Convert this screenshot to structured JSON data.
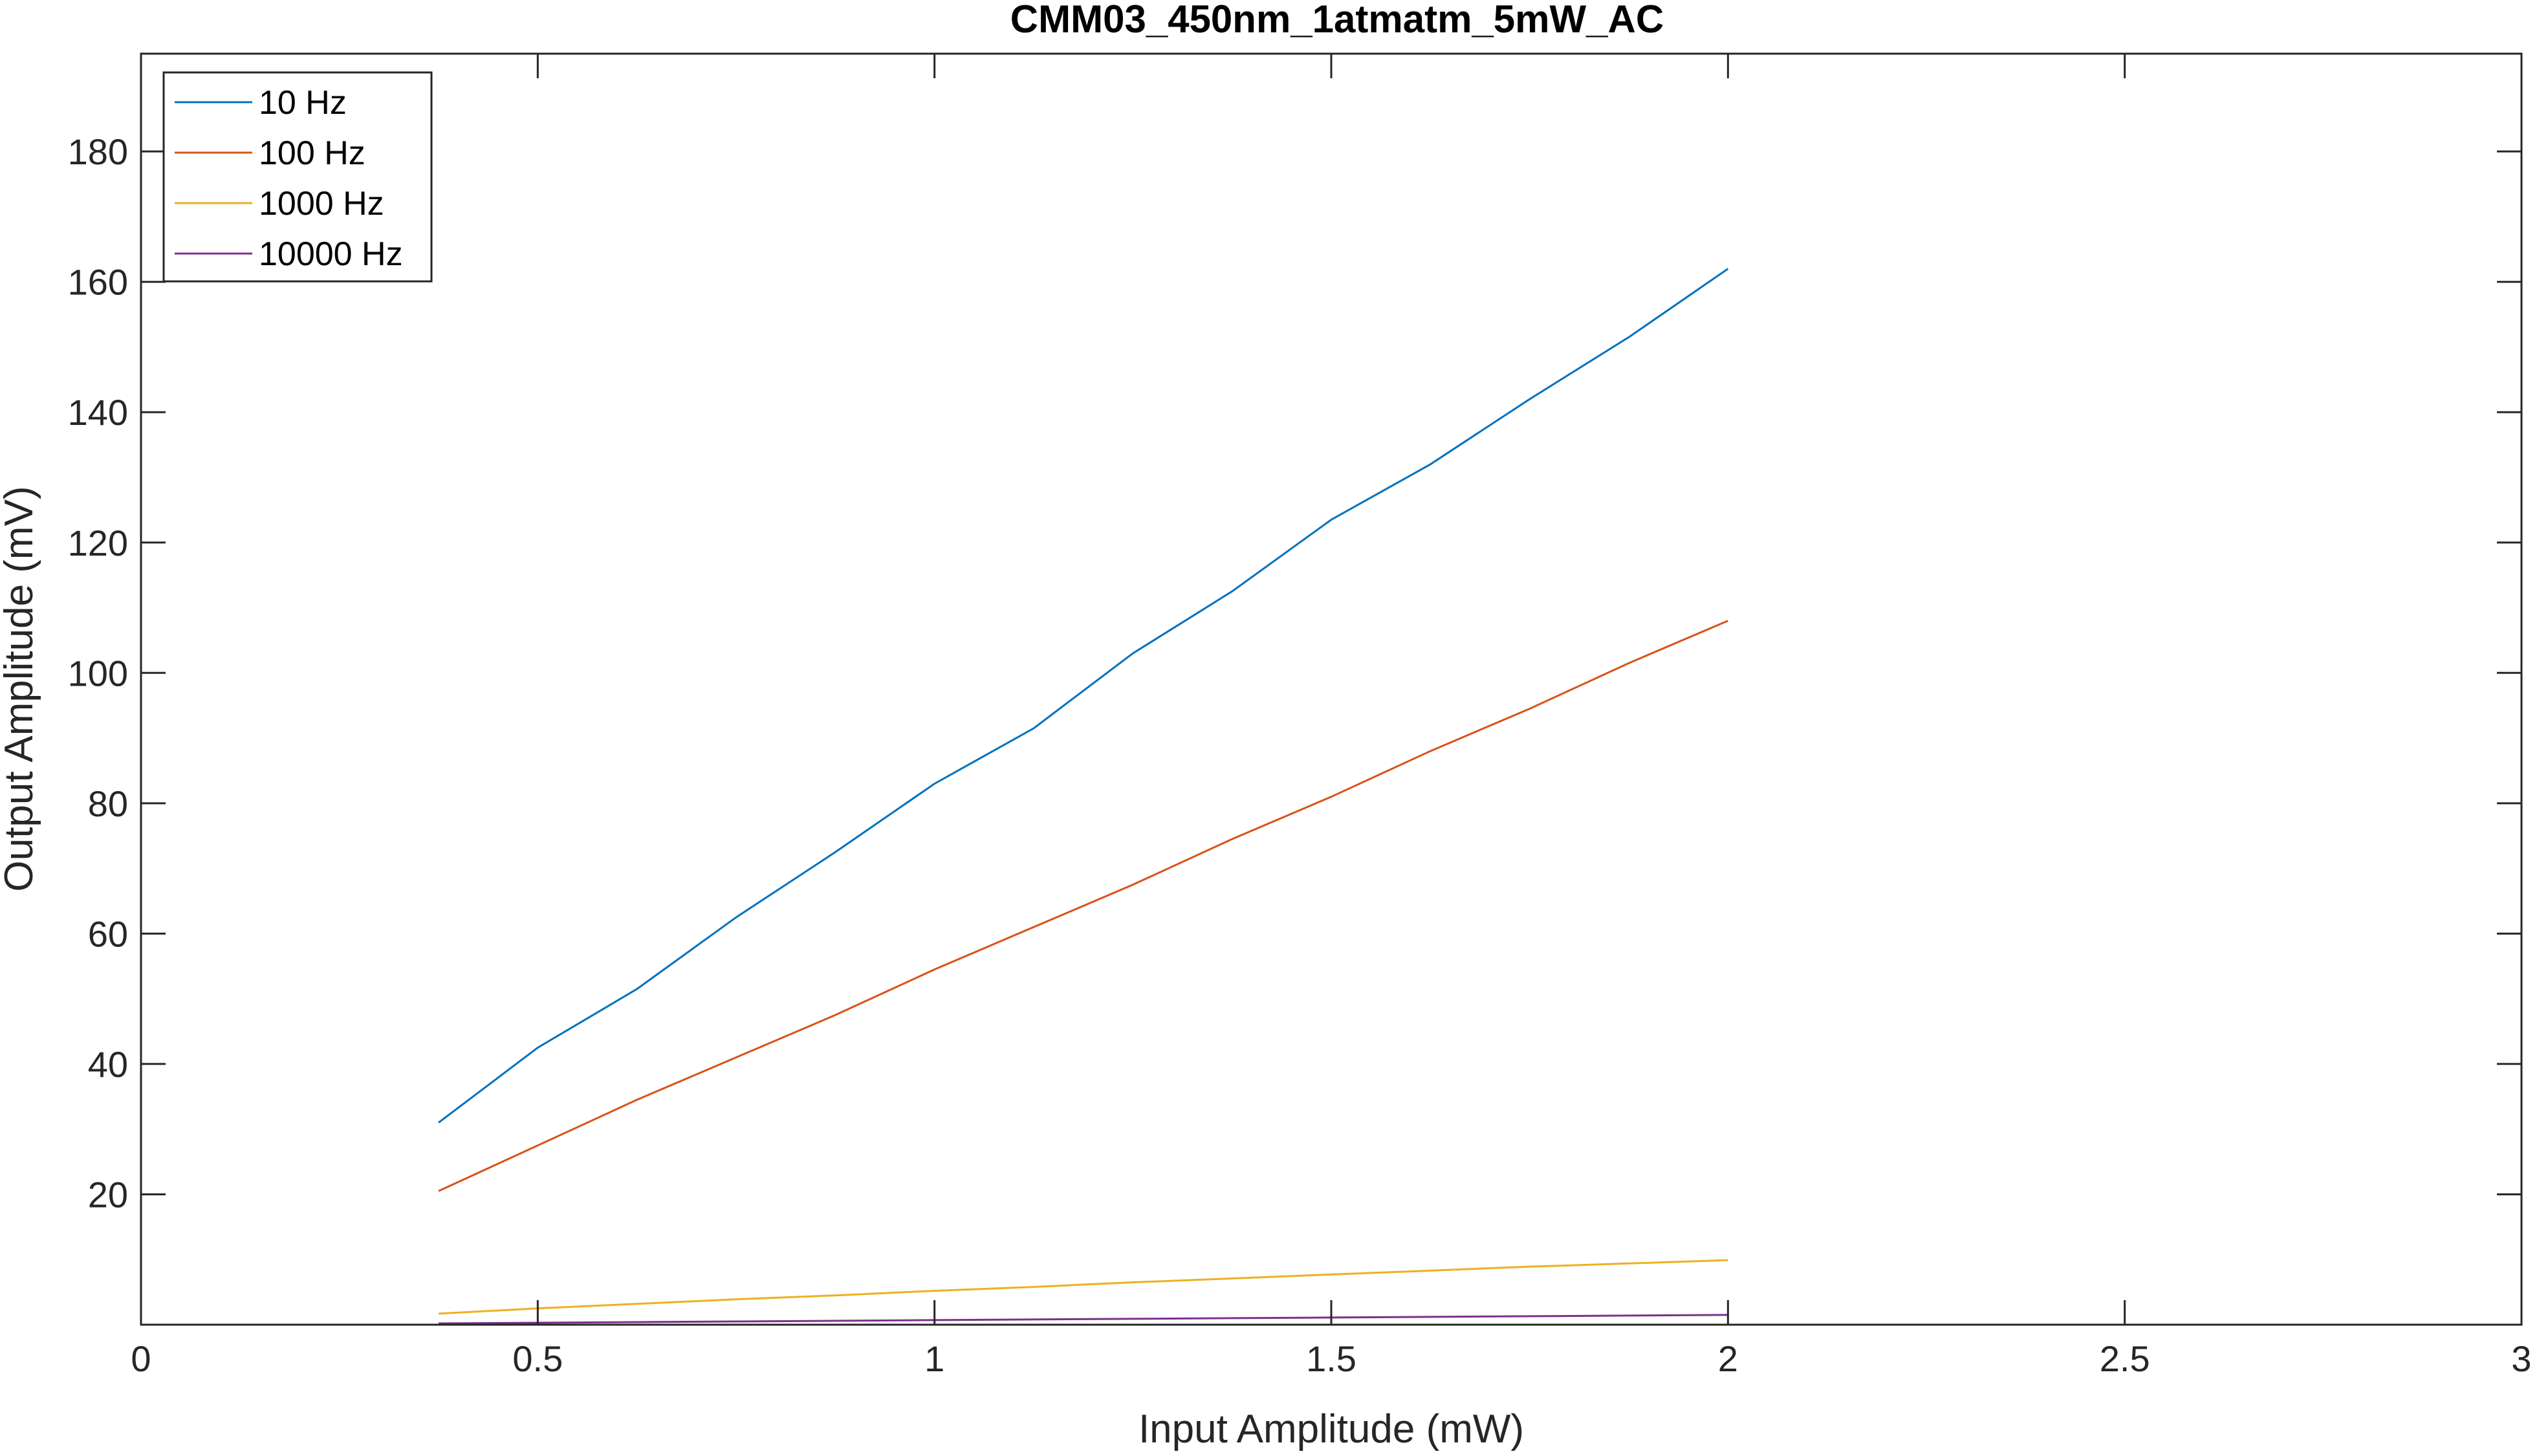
{
  "chart_data": {
    "type": "line",
    "title": "CMM03_450nm_1atmatm_5mW_AC",
    "xlabel": "Input Amplitude (mW)",
    "ylabel": "Output Amplitude (mV)",
    "xlim": [
      0,
      3
    ],
    "ylim": [
      0,
      195
    ],
    "xticks": [
      0,
      0.5,
      1,
      1.5,
      2,
      2.5,
      3
    ],
    "xtick_labels": [
      "0",
      "0.5",
      "1",
      "1.5",
      "2",
      "2.5",
      "3"
    ],
    "yticks": [
      20,
      40,
      60,
      80,
      100,
      120,
      140,
      160,
      180
    ],
    "ytick_labels": [
      "20",
      "40",
      "60",
      "80",
      "100",
      "120",
      "140",
      "160",
      "180"
    ],
    "grid": false,
    "legend_position": "top-left",
    "x": [
      0.375,
      0.5,
      0.625,
      0.75,
      0.875,
      1.0,
      1.125,
      1.25,
      1.375,
      1.5,
      1.625,
      1.75,
      1.875,
      2.0
    ],
    "series": [
      {
        "name": "10 Hz",
        "color": "#0072BD",
        "values": [
          31,
          42.5,
          51.5,
          62.5,
          72.5,
          83,
          91.5,
          103,
          112.5,
          123.5,
          132,
          142,
          151.5,
          162
        ]
      },
      {
        "name": "100 Hz",
        "color": "#D95319",
        "values": [
          20.5,
          27.5,
          34.5,
          41,
          47.5,
          54.5,
          61,
          67.5,
          74.5,
          81,
          88,
          94.5,
          101.5,
          108
        ]
      },
      {
        "name": "1000 Hz",
        "color": "#EDB120",
        "values": [
          1.7,
          2.5,
          3.2,
          3.9,
          4.5,
          5.2,
          5.8,
          6.5,
          7.1,
          7.7,
          8.3,
          8.9,
          9.4,
          9.9
        ]
      },
      {
        "name": "10000 Hz",
        "color": "#7E2F8E",
        "values": [
          0.2,
          0.3,
          0.4,
          0.5,
          0.6,
          0.7,
          0.8,
          0.9,
          1.0,
          1.1,
          1.2,
          1.3,
          1.4,
          1.5
        ]
      }
    ]
  }
}
